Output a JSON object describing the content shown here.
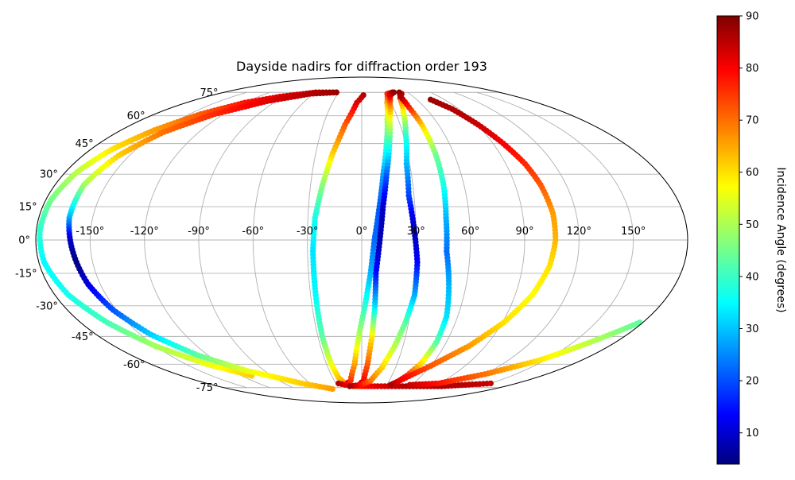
{
  "chart_data": {
    "type": "scatter",
    "projection": "mollweide",
    "title": "Dayside nadirs for diffraction order 193",
    "grid": true,
    "lon_ticks": [
      "-150°",
      "-120°",
      "-90°",
      "-60°",
      "-30°",
      "0°",
      "30°",
      "60°",
      "90°",
      "120°",
      "150°"
    ],
    "lat_ticks": [
      "75°",
      "60°",
      "45°",
      "30°",
      "15°",
      "0°",
      "-15°",
      "-30°",
      "-45°",
      "-60°",
      "-75°"
    ],
    "lon_tick_values": [
      -150,
      -120,
      -90,
      -60,
      -30,
      0,
      30,
      60,
      90,
      120,
      150
    ],
    "lat_tick_values": [
      75,
      60,
      45,
      30,
      15,
      0,
      -15,
      -30,
      -45,
      -60,
      -75
    ],
    "colorbar": {
      "label": "Incidence Angle (degrees)",
      "colormap": "jet",
      "range": [
        4,
        90
      ],
      "ticks": [
        "10",
        "20",
        "30",
        "40",
        "50",
        "60",
        "70",
        "80",
        "90"
      ],
      "tick_values": [
        10,
        20,
        30,
        40,
        50,
        60,
        70,
        80,
        90
      ]
    },
    "series": [
      {
        "points": [
          [
            -33,
            75,
            86
          ],
          [
            -60,
            75,
            84
          ],
          [
            -95,
            72,
            82
          ],
          [
            -120,
            68,
            78
          ],
          [
            -140,
            61,
            72
          ],
          [
            -155,
            52,
            66
          ],
          [
            -166,
            42,
            60
          ],
          [
            -173,
            31,
            52
          ],
          [
            -177,
            18,
            46
          ],
          [
            -178,
            4,
            40
          ],
          [
            -177,
            -10,
            36
          ],
          [
            -172,
            -25,
            38
          ],
          [
            -163,
            -38,
            42
          ],
          [
            -150,
            -50,
            50
          ],
          [
            -132,
            -60,
            56
          ],
          [
            -110,
            -67,
            62
          ]
        ]
      },
      {
        "points": [
          [
            -33,
            75,
            88
          ],
          [
            -65,
            74,
            86
          ],
          [
            -100,
            69,
            82
          ],
          [
            -128,
            61,
            76
          ],
          [
            -146,
            51,
            70
          ],
          [
            -157,
            39,
            62
          ],
          [
            -163,
            25,
            50
          ],
          [
            -163,
            10,
            30
          ],
          [
            -161,
            0,
            10
          ],
          [
            -159,
            -10,
            4
          ],
          [
            -157,
            -20,
            12
          ],
          [
            -152,
            -32,
            22
          ],
          [
            -143,
            -44,
            32
          ],
          [
            -128,
            -55,
            44
          ],
          [
            -106,
            -64,
            56
          ],
          [
            -70,
            -72,
            62
          ],
          [
            -40,
            -76,
            66
          ]
        ]
      },
      {
        "points": [
          [
            2,
            73,
            86
          ],
          [
            -5,
            68,
            82
          ],
          [
            -13,
            55,
            72
          ],
          [
            -19,
            40,
            62
          ],
          [
            -23,
            25,
            48
          ],
          [
            -26,
            10,
            38
          ],
          [
            -27,
            -5,
            34
          ],
          [
            -27,
            -25,
            36
          ],
          [
            -27,
            -45,
            44
          ],
          [
            -26,
            -60,
            56
          ],
          [
            -24,
            -68,
            62
          ],
          [
            -20,
            -72,
            66
          ],
          [
            -10,
            -74,
            72
          ],
          [
            0,
            -74,
            78
          ],
          [
            20,
            -74,
            82
          ],
          [
            60,
            -74,
            86
          ],
          [
            100,
            -74,
            86
          ],
          [
            150,
            -72,
            84
          ]
        ]
      },
      {
        "points": [
          [
            -27,
            -72,
            86
          ],
          [
            -20,
            -73,
            82
          ],
          [
            -12,
            -70,
            76
          ],
          [
            -6,
            -60,
            66
          ],
          [
            -2,
            -45,
            52
          ],
          [
            2,
            -30,
            40
          ],
          [
            5,
            -15,
            30
          ],
          [
            7,
            0,
            24
          ],
          [
            10,
            15,
            22
          ],
          [
            13,
            30,
            28
          ],
          [
            17,
            45,
            40
          ],
          [
            21,
            58,
            52
          ],
          [
            26,
            68,
            64
          ],
          [
            32,
            74,
            76
          ],
          [
            40,
            75,
            88
          ]
        ]
      },
      {
        "points": [
          [
            -3,
            -73,
            86
          ],
          [
            2,
            -70,
            80
          ],
          [
            5,
            -60,
            72
          ],
          [
            7,
            -45,
            60
          ],
          [
            8,
            -30,
            34
          ],
          [
            8,
            -15,
            16
          ],
          [
            10,
            0,
            8
          ],
          [
            12,
            15,
            10
          ],
          [
            15,
            30,
            22
          ],
          [
            19,
            45,
            40
          ],
          [
            23,
            58,
            56
          ],
          [
            29,
            68,
            70
          ],
          [
            34,
            73,
            82
          ],
          [
            42,
            75,
            88
          ]
        ]
      },
      {
        "points": [
          [
            -15,
            -74,
            88
          ],
          [
            0,
            -73,
            78
          ],
          [
            10,
            -70,
            70
          ],
          [
            18,
            -62,
            62
          ],
          [
            24,
            -50,
            52
          ],
          [
            28,
            -38,
            44
          ],
          [
            31,
            -25,
            30
          ],
          [
            31,
            -10,
            15
          ],
          [
            29,
            5,
            8
          ],
          [
            27,
            20,
            20
          ],
          [
            28,
            35,
            30
          ],
          [
            32,
            50,
            40
          ],
          [
            37,
            62,
            56
          ],
          [
            43,
            71,
            70
          ],
          [
            50,
            74,
            84
          ]
        ]
      },
      {
        "points": [
          [
            35,
            -73,
            86
          ],
          [
            40,
            -71,
            82
          ],
          [
            45,
            -67,
            76
          ],
          [
            50,
            -60,
            62
          ],
          [
            53,
            -48,
            44
          ],
          [
            53,
            -35,
            34
          ],
          [
            50,
            -20,
            30
          ],
          [
            47,
            -5,
            24
          ],
          [
            47,
            10,
            30
          ],
          [
            48,
            25,
            38
          ],
          [
            48,
            40,
            46
          ],
          [
            47,
            55,
            62
          ],
          [
            45,
            65,
            76
          ],
          [
            45,
            72,
            86
          ],
          [
            49,
            75,
            88
          ]
        ]
      },
      {
        "points": [
          [
            75,
            70,
            88
          ],
          [
            84,
            64,
            86
          ],
          [
            91,
            55,
            84
          ],
          [
            97,
            45,
            80
          ],
          [
            102,
            35,
            76
          ],
          [
            105,
            25,
            72
          ],
          [
            107,
            12,
            66
          ],
          [
            107,
            0,
            64
          ],
          [
            105,
            -12,
            60
          ],
          [
            100,
            -25,
            58
          ],
          [
            91,
            -38,
            60
          ],
          [
            78,
            -50,
            66
          ],
          [
            60,
            -61,
            72
          ],
          [
            42,
            -70,
            80
          ],
          [
            35,
            -73,
            86
          ]
        ]
      },
      {
        "points": [
          [
            58,
            -73,
            84
          ],
          [
            90,
            -72,
            78
          ],
          [
            120,
            -66,
            70
          ],
          [
            145,
            -58,
            60
          ],
          [
            162,
            -48,
            52
          ],
          [
            178,
            -38,
            44
          ]
        ]
      }
    ]
  }
}
